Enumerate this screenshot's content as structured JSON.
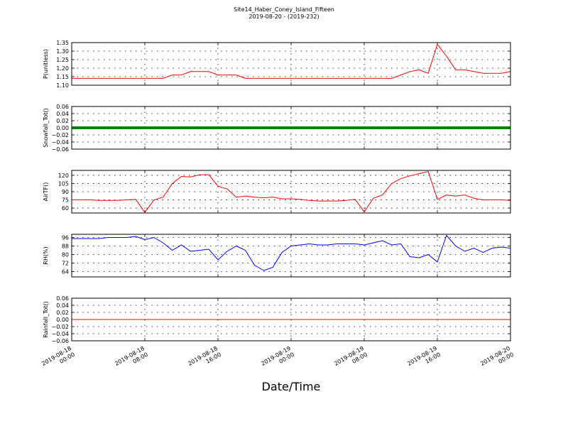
{
  "title": "Site14_Haber_Coney_Island_Fifteen",
  "subtitle": "2019-08-20 - (2019-232)",
  "xlabel": "Date/Time",
  "chart_data": [
    {
      "type": "line",
      "ylabel": "P(unitless)",
      "color": "#ff0000",
      "grid": true,
      "xlim": [
        "2019-08-18 00:00",
        "2019-08-20 00:00"
      ],
      "xticks": [
        "2019-08-18 00:00",
        "2019-08-18 08:00",
        "2019-08-18 16:00",
        "2019-08-19 00:00",
        "2019-08-19 08:00",
        "2019-08-19 16:00",
        "2019-08-20 00:00"
      ],
      "ylim": [
        1.1,
        1.35
      ],
      "yticks": [
        {
          "value": 1.1,
          "label": "1.10"
        },
        {
          "value": 1.15,
          "label": "1.15"
        },
        {
          "value": 1.2,
          "label": "1.20"
        },
        {
          "value": 1.25,
          "label": "1.25"
        },
        {
          "value": 1.3,
          "label": "1.30"
        },
        {
          "value": 1.35,
          "label": "1.35"
        }
      ],
      "x": [
        "2019-08-18 00:00",
        "2019-08-18 01:00",
        "2019-08-18 02:00",
        "2019-08-18 03:00",
        "2019-08-18 04:00",
        "2019-08-18 05:00",
        "2019-08-18 06:00",
        "2019-08-18 07:00",
        "2019-08-18 08:00",
        "2019-08-18 09:00",
        "2019-08-18 10:00",
        "2019-08-18 11:00",
        "2019-08-18 12:00",
        "2019-08-18 13:00",
        "2019-08-18 14:00",
        "2019-08-18 15:00",
        "2019-08-18 16:00",
        "2019-08-18 17:00",
        "2019-08-18 18:00",
        "2019-08-18 19:00",
        "2019-08-18 20:00",
        "2019-08-18 21:00",
        "2019-08-18 22:00",
        "2019-08-18 23:00",
        "2019-08-19 00:00",
        "2019-08-19 01:00",
        "2019-08-19 02:00",
        "2019-08-19 03:00",
        "2019-08-19 04:00",
        "2019-08-19 05:00",
        "2019-08-19 06:00",
        "2019-08-19 07:00",
        "2019-08-19 08:00",
        "2019-08-19 09:00",
        "2019-08-19 10:00",
        "2019-08-19 11:00",
        "2019-08-19 12:00",
        "2019-08-19 13:00",
        "2019-08-19 14:00",
        "2019-08-19 15:00",
        "2019-08-19 16:00",
        "2019-08-19 17:00",
        "2019-08-19 18:00",
        "2019-08-19 19:00",
        "2019-08-19 20:00",
        "2019-08-19 21:00",
        "2019-08-19 22:00",
        "2019-08-19 23:00",
        "2019-08-20 00:00"
      ],
      "values": [
        1.14,
        1.14,
        1.14,
        1.14,
        1.14,
        1.14,
        1.14,
        1.14,
        1.14,
        1.14,
        1.14,
        1.16,
        1.16,
        1.18,
        1.18,
        1.18,
        1.16,
        1.16,
        1.16,
        1.14,
        1.14,
        1.14,
        1.14,
        1.14,
        1.14,
        1.14,
        1.14,
        1.14,
        1.14,
        1.14,
        1.14,
        1.14,
        1.14,
        1.14,
        1.14,
        1.14,
        1.16,
        1.18,
        1.19,
        1.17,
        1.34,
        1.27,
        1.19,
        1.19,
        1.18,
        1.17,
        1.17,
        1.17,
        1.18
      ]
    },
    {
      "type": "line",
      "ylabel": "Snowfall_Tot()",
      "color": "#008000",
      "grid": true,
      "xlim": [
        "2019-08-18 00:00",
        "2019-08-20 00:00"
      ],
      "xticks": [
        "2019-08-18 00:00",
        "2019-08-18 08:00",
        "2019-08-18 16:00",
        "2019-08-19 00:00",
        "2019-08-19 08:00",
        "2019-08-19 16:00",
        "2019-08-20 00:00"
      ],
      "ylim": [
        -0.06,
        0.06
      ],
      "yticks": [
        {
          "value": -0.06,
          "label": "−0.06"
        },
        {
          "value": -0.04,
          "label": "−0.04"
        },
        {
          "value": -0.02,
          "label": "−0.02"
        },
        {
          "value": 0,
          "label": "0.00"
        },
        {
          "value": 0.02,
          "label": "0.02"
        },
        {
          "value": 0.04,
          "label": "0.04"
        },
        {
          "value": 0.06,
          "label": "0.06"
        }
      ],
      "x": [
        "2019-08-18 00:00",
        "2019-08-18 01:00",
        "2019-08-18 02:00",
        "2019-08-18 03:00",
        "2019-08-18 04:00",
        "2019-08-18 05:00",
        "2019-08-18 06:00",
        "2019-08-18 07:00",
        "2019-08-18 08:00",
        "2019-08-18 09:00",
        "2019-08-18 10:00",
        "2019-08-18 11:00",
        "2019-08-18 12:00",
        "2019-08-18 13:00",
        "2019-08-18 14:00",
        "2019-08-18 15:00",
        "2019-08-18 16:00",
        "2019-08-18 17:00",
        "2019-08-18 18:00",
        "2019-08-18 19:00",
        "2019-08-18 20:00",
        "2019-08-18 21:00",
        "2019-08-18 22:00",
        "2019-08-18 23:00",
        "2019-08-19 00:00",
        "2019-08-19 01:00",
        "2019-08-19 02:00",
        "2019-08-19 03:00",
        "2019-08-19 04:00",
        "2019-08-19 05:00",
        "2019-08-19 06:00",
        "2019-08-19 07:00",
        "2019-08-19 08:00",
        "2019-08-19 09:00",
        "2019-08-19 10:00",
        "2019-08-19 11:00",
        "2019-08-19 12:00",
        "2019-08-19 13:00",
        "2019-08-19 14:00",
        "2019-08-19 15:00",
        "2019-08-19 16:00",
        "2019-08-19 17:00",
        "2019-08-19 18:00",
        "2019-08-19 19:00",
        "2019-08-19 20:00",
        "2019-08-19 21:00",
        "2019-08-19 22:00",
        "2019-08-19 23:00",
        "2019-08-20 00:00"
      ],
      "values": [
        0,
        0,
        0,
        0,
        0,
        0,
        0,
        0,
        0,
        0,
        0,
        0,
        0,
        0,
        0,
        0,
        0,
        0,
        0,
        0,
        0,
        0,
        0,
        0,
        0,
        0,
        0,
        0,
        0,
        0,
        0,
        0,
        0,
        0,
        0,
        0,
        0,
        0,
        0,
        0,
        0,
        0,
        0,
        0,
        0,
        0,
        0,
        0,
        0
      ]
    },
    {
      "type": "line",
      "ylabel": "AirTF()",
      "color": "#ff0000",
      "grid": true,
      "xlim": [
        "2019-08-18 00:00",
        "2019-08-20 00:00"
      ],
      "xticks": [
        "2019-08-18 00:00",
        "2019-08-18 08:00",
        "2019-08-18 16:00",
        "2019-08-19 00:00",
        "2019-08-19 08:00",
        "2019-08-19 16:00",
        "2019-08-20 00:00"
      ],
      "ylim": [
        51,
        129
      ],
      "yticks": [
        60,
        75,
        90,
        105,
        120
      ],
      "x": [
        "2019-08-18 00:00",
        "2019-08-18 01:00",
        "2019-08-18 02:00",
        "2019-08-18 03:00",
        "2019-08-18 04:00",
        "2019-08-18 05:00",
        "2019-08-18 06:00",
        "2019-08-18 07:00",
        "2019-08-18 08:00",
        "2019-08-18 09:00",
        "2019-08-18 10:00",
        "2019-08-18 11:00",
        "2019-08-18 12:00",
        "2019-08-18 13:00",
        "2019-08-18 14:00",
        "2019-08-18 15:00",
        "2019-08-18 16:00",
        "2019-08-18 17:00",
        "2019-08-18 18:00",
        "2019-08-18 19:00",
        "2019-08-18 20:00",
        "2019-08-18 21:00",
        "2019-08-18 22:00",
        "2019-08-18 23:00",
        "2019-08-19 00:00",
        "2019-08-19 01:00",
        "2019-08-19 02:00",
        "2019-08-19 03:00",
        "2019-08-19 04:00",
        "2019-08-19 05:00",
        "2019-08-19 06:00",
        "2019-08-19 07:00",
        "2019-08-19 08:00",
        "2019-08-19 09:00",
        "2019-08-19 10:00",
        "2019-08-19 11:00",
        "2019-08-19 12:00",
        "2019-08-19 13:00",
        "2019-08-19 14:00",
        "2019-08-19 15:00",
        "2019-08-19 16:00",
        "2019-08-19 17:00",
        "2019-08-19 18:00",
        "2019-08-19 19:00",
        "2019-08-19 20:00",
        "2019-08-19 21:00",
        "2019-08-19 22:00",
        "2019-08-19 23:00",
        "2019-08-20 00:00"
      ],
      "values": [
        75,
        75,
        75,
        74,
        74,
        74,
        75,
        76,
        52,
        75,
        80,
        105,
        118,
        117,
        121,
        121,
        100,
        95,
        80,
        82,
        80,
        79,
        80,
        77,
        77,
        76,
        74,
        73,
        73,
        73,
        74,
        76,
        53,
        78,
        84,
        105,
        114,
        119,
        123,
        127,
        76,
        84,
        82,
        84,
        78,
        75,
        75,
        75,
        74
      ]
    },
    {
      "type": "line",
      "ylabel": "RH(%)",
      "color": "#0000ff",
      "grid": true,
      "xlim": [
        "2019-08-18 00:00",
        "2019-08-20 00:00"
      ],
      "xticks": [
        "2019-08-18 00:00",
        "2019-08-18 08:00",
        "2019-08-18 16:00",
        "2019-08-19 00:00",
        "2019-08-19 08:00",
        "2019-08-19 16:00",
        "2019-08-20 00:00"
      ],
      "ylim": [
        59,
        99
      ],
      "yticks": [
        64,
        72,
        80,
        88,
        96
      ],
      "x": [
        "2019-08-18 00:00",
        "2019-08-18 01:00",
        "2019-08-18 02:00",
        "2019-08-18 03:00",
        "2019-08-18 04:00",
        "2019-08-18 05:00",
        "2019-08-18 06:00",
        "2019-08-18 07:00",
        "2019-08-18 08:00",
        "2019-08-18 09:00",
        "2019-08-18 10:00",
        "2019-08-18 11:00",
        "2019-08-18 12:00",
        "2019-08-18 13:00",
        "2019-08-18 14:00",
        "2019-08-18 15:00",
        "2019-08-18 16:00",
        "2019-08-18 17:00",
        "2019-08-18 18:00",
        "2019-08-18 19:00",
        "2019-08-18 20:00",
        "2019-08-18 21:00",
        "2019-08-18 22:00",
        "2019-08-18 23:00",
        "2019-08-19 00:00",
        "2019-08-19 01:00",
        "2019-08-19 02:00",
        "2019-08-19 03:00",
        "2019-08-19 04:00",
        "2019-08-19 05:00",
        "2019-08-19 06:00",
        "2019-08-19 07:00",
        "2019-08-19 08:00",
        "2019-08-19 09:00",
        "2019-08-19 10:00",
        "2019-08-19 11:00",
        "2019-08-19 12:00",
        "2019-08-19 13:00",
        "2019-08-19 14:00",
        "2019-08-19 15:00",
        "2019-08-19 16:00",
        "2019-08-19 17:00",
        "2019-08-19 18:00",
        "2019-08-19 19:00",
        "2019-08-19 20:00",
        "2019-08-19 21:00",
        "2019-08-19 22:00",
        "2019-08-19 23:00",
        "2019-08-20 00:00"
      ],
      "values": [
        95,
        95,
        95,
        95,
        96,
        96,
        96,
        97,
        94,
        96,
        91,
        84,
        89,
        83,
        84,
        85,
        75,
        83,
        88,
        84,
        70,
        65,
        68,
        82,
        88,
        89,
        90,
        89,
        89,
        90,
        90,
        90,
        89,
        91,
        93,
        89,
        90,
        78,
        77,
        80,
        73,
        98,
        88,
        83,
        86,
        82,
        86,
        87,
        86
      ]
    },
    {
      "type": "line",
      "ylabel": "Rainfall_Tot()",
      "color": "#ff0000",
      "grid": true,
      "xlim": [
        "2019-08-18 00:00",
        "2019-08-20 00:00"
      ],
      "xticks": [
        "2019-08-18 00:00",
        "2019-08-18 08:00",
        "2019-08-18 16:00",
        "2019-08-19 00:00",
        "2019-08-19 08:00",
        "2019-08-19 16:00",
        "2019-08-20 00:00"
      ],
      "ylim": [
        -0.06,
        0.06
      ],
      "yticks": [
        {
          "value": -0.06,
          "label": "−0.06"
        },
        {
          "value": -0.04,
          "label": "−0.04"
        },
        {
          "value": -0.02,
          "label": "−0.02"
        },
        {
          "value": 0,
          "label": "0.00"
        },
        {
          "value": 0.02,
          "label": "0.02"
        },
        {
          "value": 0.04,
          "label": "0.04"
        },
        {
          "value": 0.06,
          "label": "0.06"
        }
      ],
      "x": [
        "2019-08-18 00:00",
        "2019-08-18 01:00",
        "2019-08-18 02:00",
        "2019-08-18 03:00",
        "2019-08-18 04:00",
        "2019-08-18 05:00",
        "2019-08-18 06:00",
        "2019-08-18 07:00",
        "2019-08-18 08:00",
        "2019-08-18 09:00",
        "2019-08-18 10:00",
        "2019-08-18 11:00",
        "2019-08-18 12:00",
        "2019-08-18 13:00",
        "2019-08-18 14:00",
        "2019-08-18 15:00",
        "2019-08-18 16:00",
        "2019-08-18 17:00",
        "2019-08-18 18:00",
        "2019-08-18 19:00",
        "2019-08-18 20:00",
        "2019-08-18 21:00",
        "2019-08-18 22:00",
        "2019-08-18 23:00",
        "2019-08-19 00:00",
        "2019-08-19 01:00",
        "2019-08-19 02:00",
        "2019-08-19 03:00",
        "2019-08-19 04:00",
        "2019-08-19 05:00",
        "2019-08-19 06:00",
        "2019-08-19 07:00",
        "2019-08-19 08:00",
        "2019-08-19 09:00",
        "2019-08-19 10:00",
        "2019-08-19 11:00",
        "2019-08-19 12:00",
        "2019-08-19 13:00",
        "2019-08-19 14:00",
        "2019-08-19 15:00",
        "2019-08-19 16:00",
        "2019-08-19 17:00",
        "2019-08-19 18:00",
        "2019-08-19 19:00",
        "2019-08-19 20:00",
        "2019-08-19 21:00",
        "2019-08-19 22:00",
        "2019-08-19 23:00",
        "2019-08-20 00:00"
      ],
      "values": [
        0,
        0,
        0,
        0,
        0,
        0,
        0,
        0,
        0,
        0,
        0,
        0,
        0,
        0,
        0,
        0,
        0,
        0,
        0,
        0,
        0,
        0,
        0,
        0,
        0,
        0,
        0,
        0,
        0,
        0,
        0,
        0,
        0,
        0,
        0,
        0,
        0,
        0,
        0,
        0,
        0,
        0,
        0,
        0,
        0,
        0,
        0,
        0,
        0
      ]
    }
  ]
}
